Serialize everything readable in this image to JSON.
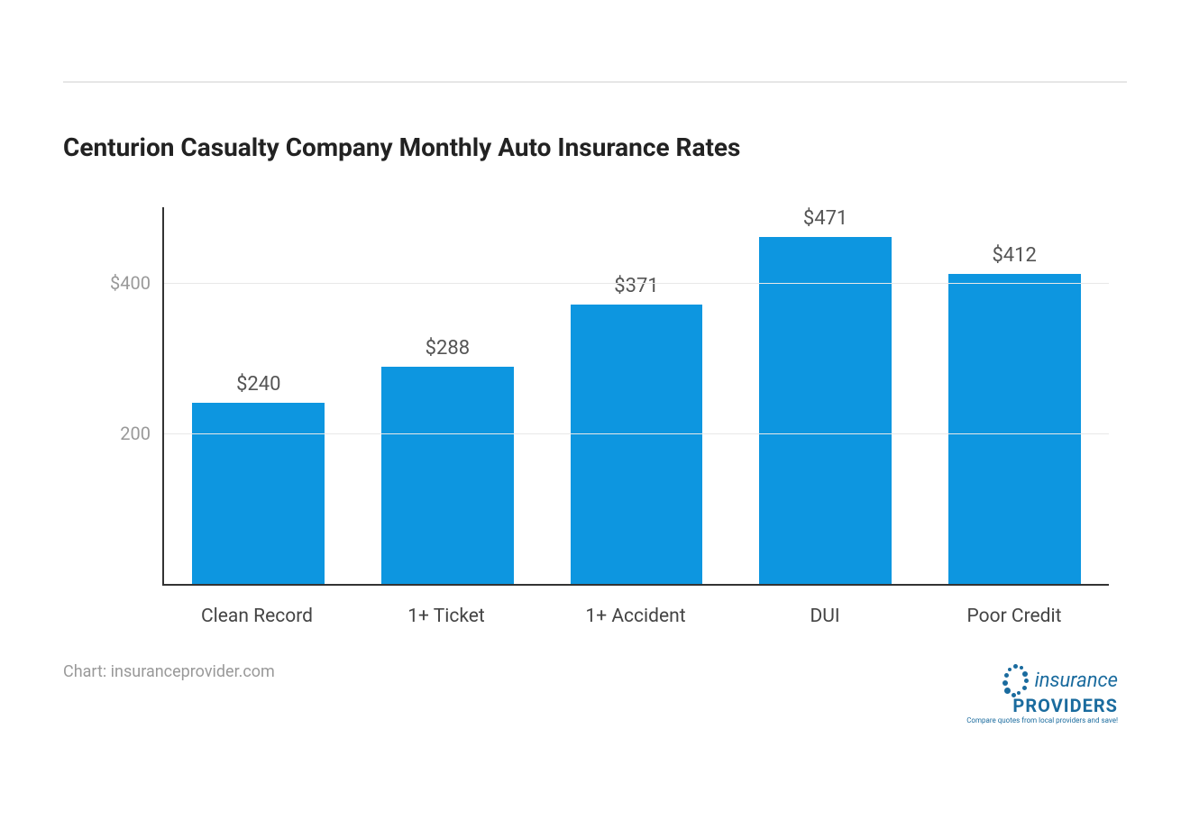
{
  "chart": {
    "type": "bar",
    "title": "Centurion Casualty Company Monthly Auto Insurance Rates",
    "title_fontsize": 28,
    "title_color": "#222222",
    "categories": [
      "Clean Record",
      "1+ Ticket",
      "1+ Accident",
      "DUI",
      "Poor Credit"
    ],
    "values": [
      240,
      288,
      371,
      471,
      412
    ],
    "value_labels": [
      "$240",
      "$288",
      "$371",
      "$471",
      "$412"
    ],
    "bar_color": "#0d96e0",
    "bar_width": 0.7,
    "ylim": [
      0,
      500
    ],
    "yticks": [
      200,
      400
    ],
    "ytick_labels": [
      "200",
      "$400"
    ],
    "ytick_fontsize": 20,
    "ytick_color": "#999999",
    "xlabel_fontsize": 21,
    "xlabel_color": "#444444",
    "value_label_fontsize": 22,
    "value_label_color": "#555555",
    "grid_color": "#e8e8e8",
    "axis_color": "#333333",
    "background_color": "#ffffff"
  },
  "attribution": "Chart: insuranceprovider.com",
  "logo": {
    "text1": "insurance",
    "text2": "PROVIDERS",
    "sub": "Compare quotes from local providers and save!",
    "color": "#1a6b9e"
  }
}
